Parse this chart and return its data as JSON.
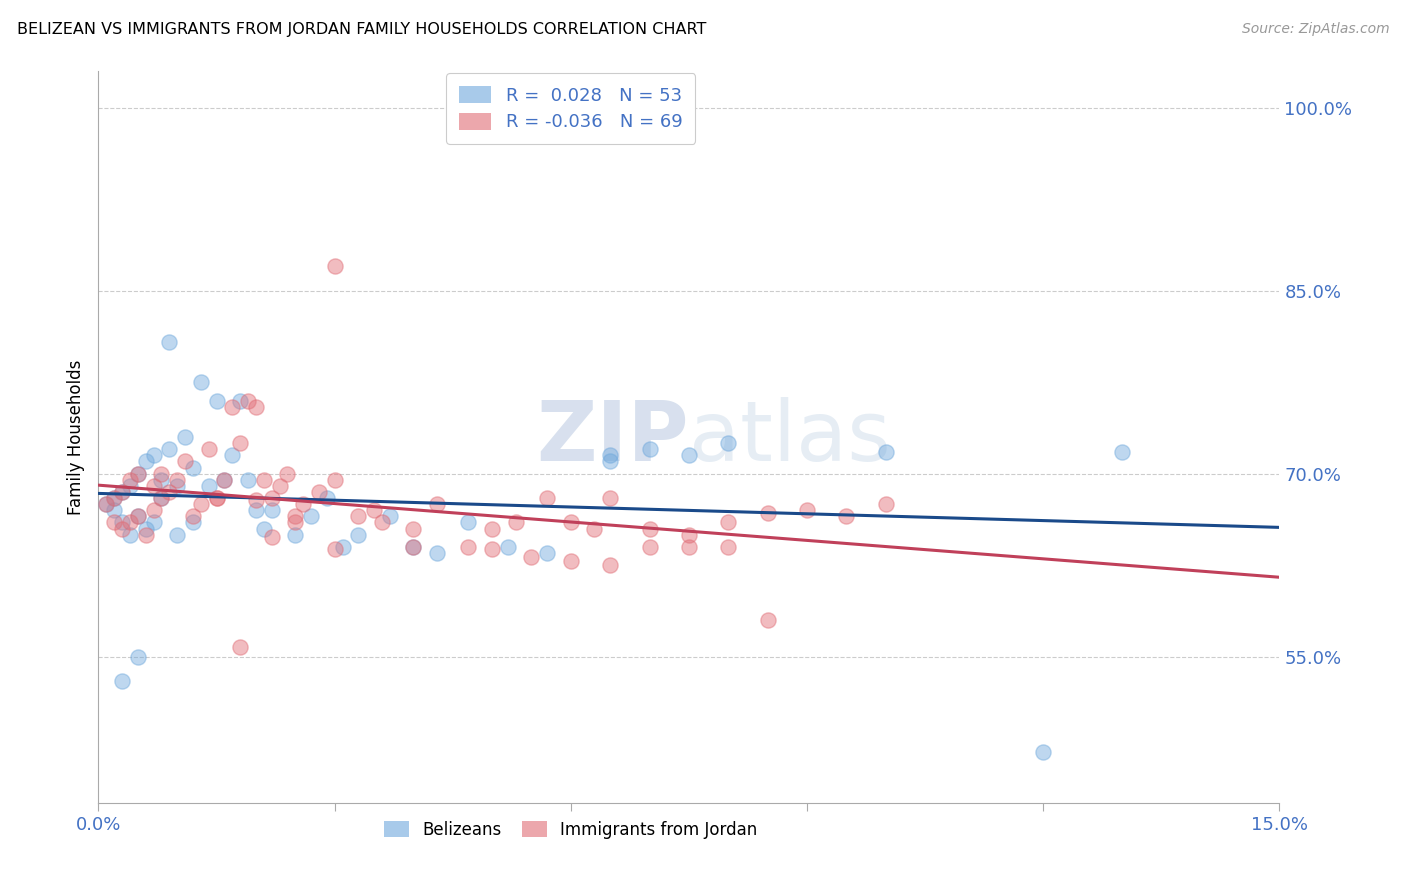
{
  "title": "BELIZEAN VS IMMIGRANTS FROM JORDAN FAMILY HOUSEHOLDS CORRELATION CHART",
  "source": "Source: ZipAtlas.com",
  "ylabel": "Family Households",
  "xlim": [
    0.0,
    0.15
  ],
  "ylim": [
    0.43,
    1.03
  ],
  "ytick_positions": [
    0.55,
    0.7,
    0.85,
    1.0
  ],
  "yticklabels": [
    "55.0%",
    "70.0%",
    "85.0%",
    "100.0%"
  ],
  "blue_color": "#6fa8dc",
  "pink_color": "#e06c75",
  "blue_line_color": "#1a4a8a",
  "pink_line_color": "#c0405a",
  "watermark": "ZIPatlas",
  "blue_r": 0.028,
  "blue_n": 53,
  "pink_r": -0.036,
  "pink_n": 69,
  "background_color": "#ffffff",
  "grid_color": "#cccccc",
  "tick_label_color": "#4472c4",
  "dot_size": 120,
  "blue_x": [
    0.001,
    0.002,
    0.002,
    0.003,
    0.003,
    0.004,
    0.004,
    0.005,
    0.005,
    0.006,
    0.006,
    0.007,
    0.007,
    0.008,
    0.008,
    0.009,
    0.01,
    0.01,
    0.011,
    0.012,
    0.012,
    0.013,
    0.014,
    0.015,
    0.016,
    0.017,
    0.018,
    0.019,
    0.02,
    0.021,
    0.022,
    0.025,
    0.027,
    0.029,
    0.031,
    0.033,
    0.037,
    0.04,
    0.043,
    0.047,
    0.052,
    0.057,
    0.065,
    0.07,
    0.075,
    0.08,
    0.1,
    0.065,
    0.003,
    0.005,
    0.009,
    0.13,
    0.12
  ],
  "blue_y": [
    0.675,
    0.67,
    0.68,
    0.66,
    0.685,
    0.65,
    0.69,
    0.665,
    0.7,
    0.655,
    0.71,
    0.66,
    0.715,
    0.68,
    0.695,
    0.72,
    0.65,
    0.69,
    0.73,
    0.66,
    0.705,
    0.775,
    0.69,
    0.76,
    0.695,
    0.715,
    0.76,
    0.695,
    0.67,
    0.655,
    0.67,
    0.65,
    0.665,
    0.68,
    0.64,
    0.65,
    0.665,
    0.64,
    0.635,
    0.66,
    0.64,
    0.635,
    0.715,
    0.72,
    0.715,
    0.725,
    0.718,
    0.71,
    0.53,
    0.55,
    0.808,
    0.718,
    0.472
  ],
  "pink_x": [
    0.001,
    0.002,
    0.002,
    0.003,
    0.003,
    0.004,
    0.004,
    0.005,
    0.005,
    0.006,
    0.007,
    0.007,
    0.008,
    0.008,
    0.009,
    0.01,
    0.011,
    0.012,
    0.013,
    0.014,
    0.015,
    0.016,
    0.017,
    0.018,
    0.019,
    0.02,
    0.021,
    0.022,
    0.023,
    0.024,
    0.025,
    0.026,
    0.028,
    0.03,
    0.033,
    0.036,
    0.04,
    0.043,
    0.047,
    0.05,
    0.053,
    0.057,
    0.06,
    0.063,
    0.065,
    0.07,
    0.075,
    0.08,
    0.085,
    0.09,
    0.095,
    0.1,
    0.08,
    0.07,
    0.075,
    0.085,
    0.03,
    0.035,
    0.065,
    0.055,
    0.06,
    0.04,
    0.025,
    0.05,
    0.03,
    0.02,
    0.015,
    0.022,
    0.018
  ],
  "pink_y": [
    0.675,
    0.66,
    0.68,
    0.655,
    0.685,
    0.66,
    0.695,
    0.665,
    0.7,
    0.65,
    0.67,
    0.69,
    0.68,
    0.7,
    0.685,
    0.695,
    0.71,
    0.665,
    0.675,
    0.72,
    0.68,
    0.695,
    0.755,
    0.725,
    0.76,
    0.755,
    0.695,
    0.68,
    0.69,
    0.7,
    0.665,
    0.675,
    0.685,
    0.695,
    0.665,
    0.66,
    0.655,
    0.675,
    0.64,
    0.655,
    0.66,
    0.68,
    0.66,
    0.655,
    0.68,
    0.655,
    0.65,
    0.66,
    0.668,
    0.67,
    0.665,
    0.675,
    0.64,
    0.64,
    0.64,
    0.58,
    0.87,
    0.67,
    0.625,
    0.632,
    0.628,
    0.64,
    0.66,
    0.638,
    0.638,
    0.678,
    0.68,
    0.648,
    0.558
  ]
}
